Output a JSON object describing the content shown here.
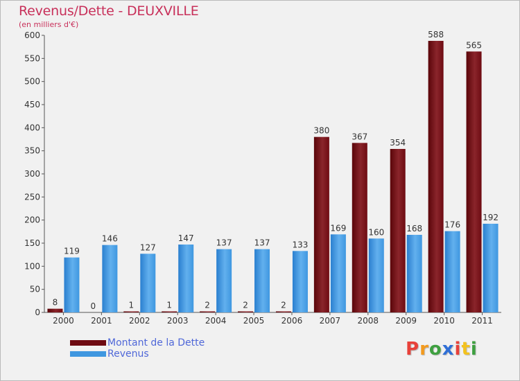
{
  "chart_data": {
    "type": "bar",
    "title": "Revenus/Dette - DEUXVILLE",
    "subtitle": "(en milliers d'€)",
    "categories": [
      "2000",
      "2001",
      "2002",
      "2003",
      "2004",
      "2005",
      "2006",
      "2007",
      "2008",
      "2009",
      "2010",
      "2011"
    ],
    "series": [
      {
        "name": "Montant de la Dette",
        "color": "#6e0b12",
        "values": [
          8,
          0,
          1,
          1,
          2,
          2,
          2,
          380,
          367,
          354,
          588,
          565
        ]
      },
      {
        "name": "Revenus",
        "color": "#3f97e0",
        "values": [
          119,
          146,
          127,
          147,
          137,
          137,
          133,
          169,
          160,
          168,
          176,
          192
        ]
      }
    ],
    "ylim": [
      0,
      600
    ],
    "yticks": [
      0,
      50,
      100,
      150,
      200,
      250,
      300,
      350,
      400,
      450,
      500,
      550,
      600
    ],
    "grid": false,
    "legend_position": "bottom-left"
  },
  "legend": {
    "debt_label": "Montant de la Dette",
    "revenue_label": "Revenus"
  },
  "logo": {
    "letters": [
      "P",
      "r",
      "o",
      "x",
      "i",
      "t",
      "i"
    ],
    "colors": [
      "#e8413a",
      "#f39a1e",
      "#3ea040",
      "#2f6fd6",
      "#e8413a",
      "#f3c21e",
      "#3ea040"
    ]
  }
}
